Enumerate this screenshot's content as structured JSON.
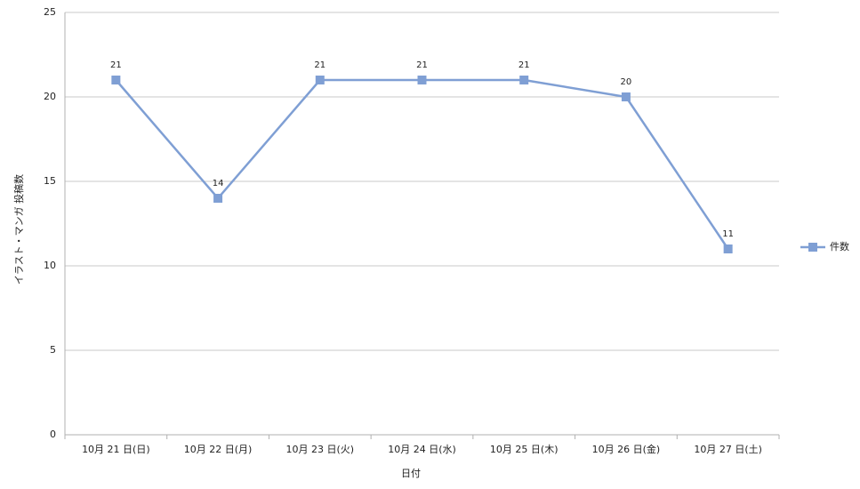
{
  "chart_data": {
    "type": "line",
    "categories": [
      "10月 21 日(日)",
      "10月 22 日(月)",
      "10月 23 日(火)",
      "10月 24 日(水)",
      "10月 25 日(木)",
      "10月 26 日(金)",
      "10月 27 日(土)"
    ],
    "series": [
      {
        "name": "件数",
        "color": "#7f9fd4",
        "values": [
          21,
          14,
          21,
          21,
          21,
          20,
          11
        ]
      }
    ],
    "x_label": "日付",
    "y_label": "イラスト・マンガ 投稿数",
    "ylim": [
      0,
      25
    ],
    "yticks": [
      0,
      5,
      10,
      15,
      20,
      25
    ],
    "grid": true,
    "legend": "right"
  }
}
